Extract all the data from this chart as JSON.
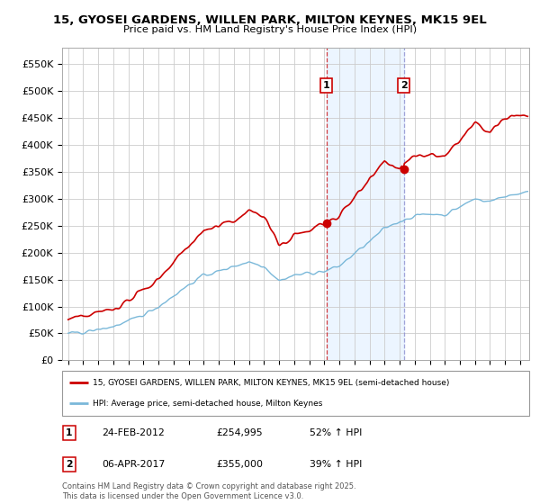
{
  "title": "15, GYOSEI GARDENS, WILLEN PARK, MILTON KEYNES, MK15 9EL",
  "subtitle": "Price paid vs. HM Land Registry's House Price Index (HPI)",
  "xlim_start": 1994.6,
  "xlim_end": 2025.6,
  "ylim_bottom": 0,
  "ylim_top": 580000,
  "yticks": [
    0,
    50000,
    100000,
    150000,
    200000,
    250000,
    300000,
    350000,
    400000,
    450000,
    500000,
    550000
  ],
  "ytick_labels": [
    "£0",
    "£50K",
    "£100K",
    "£150K",
    "£200K",
    "£250K",
    "£300K",
    "£350K",
    "£400K",
    "£450K",
    "£500K",
    "£550K"
  ],
  "sale1_x": 2012.14,
  "sale1_y": 254995,
  "sale1_label": "1",
  "sale2_x": 2017.27,
  "sale2_y": 355000,
  "sale2_label": "2",
  "sale_color": "#cc0000",
  "hpi_color": "#7ab8d9",
  "legend_sale": "15, GYOSEI GARDENS, WILLEN PARK, MILTON KEYNES, MK15 9EL (semi-detached house)",
  "legend_hpi": "HPI: Average price, semi-detached house, Milton Keynes",
  "note1_date": "24-FEB-2012",
  "note1_price": "£254,995",
  "note1_hpi": "52% ↑ HPI",
  "note2_date": "06-APR-2017",
  "note2_price": "£355,000",
  "note2_hpi": "39% ↑ HPI",
  "footer": "Contains HM Land Registry data © Crown copyright and database right 2025.\nThis data is licensed under the Open Government Licence v3.0.",
  "background_color": "#ffffff",
  "grid_color": "#cccccc",
  "hpi_anchor_years": [
    1995,
    1996,
    1997,
    1998,
    1999,
    2000,
    2001,
    2002,
    2003,
    2004,
    2005,
    2006,
    2007,
    2008,
    2009,
    2010,
    2011,
    2012,
    2013,
    2014,
    2015,
    2016,
    2017,
    2018,
    2019,
    2020,
    2021,
    2022,
    2023,
    2024,
    2025
  ],
  "hpi_anchor_vals": [
    49000,
    52000,
    57000,
    63000,
    72000,
    85000,
    100000,
    120000,
    140000,
    158000,
    165000,
    175000,
    183000,
    175000,
    148000,
    158000,
    162000,
    165000,
    175000,
    198000,
    220000,
    245000,
    258000,
    268000,
    272000,
    270000,
    285000,
    300000,
    295000,
    305000,
    310000
  ],
  "red_anchor_years": [
    1995,
    1996,
    1997,
    1998,
    1999,
    2000,
    2001,
    2002,
    2003,
    2004,
    2005,
    2006,
    2007,
    2008,
    2009,
    2010,
    2011,
    2012,
    2013,
    2014,
    2015,
    2016,
    2017,
    2018,
    2019,
    2020,
    2021,
    2022,
    2023,
    2024,
    2025
  ],
  "red_anchor_vals": [
    75000,
    80000,
    88000,
    96000,
    110000,
    130000,
    152000,
    183000,
    213000,
    240000,
    248000,
    260000,
    278000,
    268000,
    212000,
    232000,
    240000,
    255000,
    268000,
    302000,
    340000,
    370000,
    355000,
    378000,
    382000,
    375000,
    410000,
    440000,
    420000,
    450000,
    455000
  ]
}
